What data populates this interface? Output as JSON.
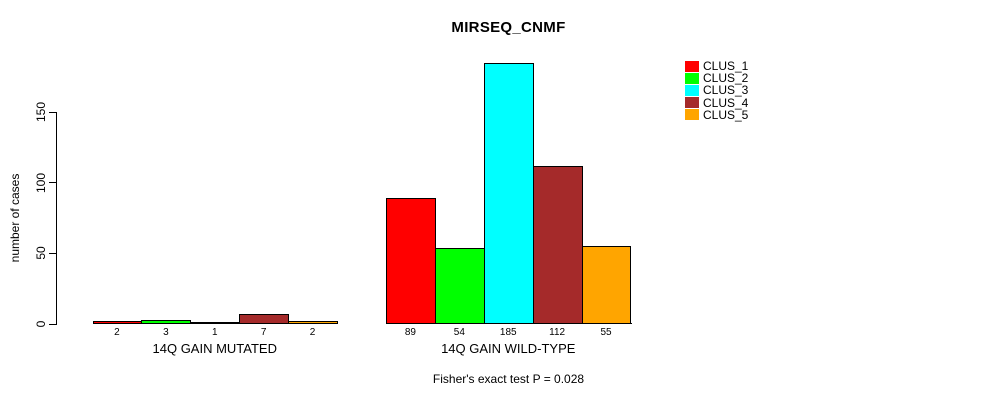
{
  "chart_data": {
    "type": "bar",
    "title": "MIRSEQ_CNMF",
    "ylabel": "number of cases",
    "xlabel": "",
    "ylim": [
      0,
      185
    ],
    "yticks": [
      0,
      50,
      100,
      150
    ],
    "grid": false,
    "legend_position": "right",
    "categories": [
      "14Q GAIN MUTATED",
      "14Q GAIN WILD-TYPE"
    ],
    "series": [
      {
        "name": "CLUS_1",
        "color": "#FF0000",
        "values": [
          2,
          89
        ]
      },
      {
        "name": "CLUS_2",
        "color": "#00FF00",
        "values": [
          3,
          54
        ]
      },
      {
        "name": "CLUS_3",
        "color": "#00FFFF",
        "values": [
          1,
          185
        ]
      },
      {
        "name": "CLUS_4",
        "color": "#A52A2A",
        "values": [
          7,
          112
        ]
      },
      {
        "name": "CLUS_5",
        "color": "#FFA500",
        "values": [
          2,
          55
        ]
      }
    ],
    "bar_value_labels_shown": true,
    "annotation": "Fisher's exact test P = 0.028",
    "colors": {
      "background": "#FFFFFF",
      "axis": "#000000",
      "bar_border": "#000000",
      "text": "#000000"
    }
  }
}
